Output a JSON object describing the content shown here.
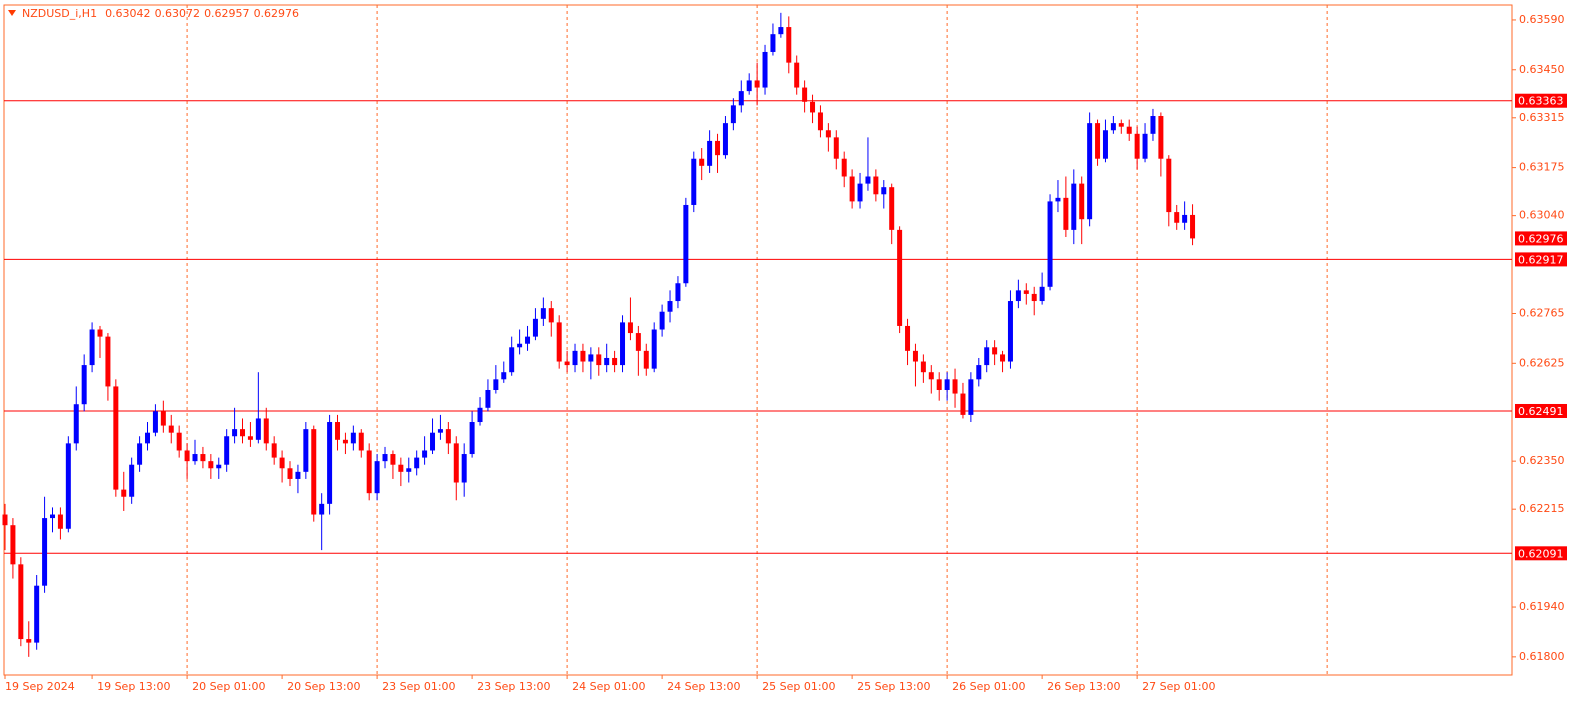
{
  "chart_data": {
    "type": "candlestick",
    "title": "NZDUSD_i,H1",
    "up_color": "#0000ff",
    "down_color": "#ff0000",
    "level_color": "#ff0000",
    "ylim": [
      0.61749,
      0.63632
    ],
    "yticks": [
      {
        "value": 0.6359,
        "label": "0.63590"
      },
      {
        "value": 0.6345,
        "label": "0.63450"
      },
      0.63315,
      0.63175,
      {
        "value": 0.6304,
        "label": "0.63040"
      },
      0.62765,
      0.62625,
      {
        "value": 0.6235,
        "label": "0.62350"
      },
      0.62215,
      {
        "value": 0.6194,
        "label": "0.61940"
      },
      {
        "value": 0.618,
        "label": "0.61800"
      }
    ],
    "xticks": [
      {
        "value": 0,
        "label": "19 Sep 2024"
      },
      {
        "value": 11,
        "label": "19 Sep 13:00"
      },
      {
        "value": 23,
        "label": "20 Sep 01:00"
      },
      {
        "value": 35,
        "label": "20 Sep 13:00"
      },
      {
        "value": 47,
        "label": "23 Sep 01:00"
      },
      {
        "value": 59,
        "label": "23 Sep 13:00"
      },
      {
        "value": 71,
        "label": "24 Sep 01:00"
      },
      {
        "value": 83,
        "label": "24 Sep 13:00"
      },
      {
        "value": 95,
        "label": "25 Sep 01:00"
      },
      {
        "value": 107,
        "label": "25 Sep 13:00"
      },
      {
        "value": 119,
        "label": "26 Sep 01:00"
      },
      {
        "value": 131,
        "label": "26 Sep 13:00"
      },
      {
        "value": 143,
        "label": "27 Sep 01:00"
      }
    ],
    "levels": [
      0.63363,
      0.62917,
      0.62491,
      0.62091
    ],
    "open": [
      0.622,
      0.6217,
      0.6206,
      0.6185,
      0.6184,
      0.62,
      0.6219,
      0.622,
      0.6216,
      0.624,
      0.6251,
      0.6262,
      0.6272,
      0.627,
      0.6256,
      0.6227,
      0.6225,
      0.6234,
      0.624,
      0.6243,
      0.6249,
      0.6245,
      0.6243,
      0.6238,
      0.6235,
      0.6237,
      0.6235,
      0.6233,
      0.6234,
      0.6242,
      0.6244,
      0.6242,
      0.6241,
      0.6247,
      0.624,
      0.6236,
      0.6233,
      0.623,
      0.6232,
      0.6244,
      0.622,
      0.6223,
      0.6246,
      0.6241,
      0.624,
      0.6243,
      0.6238,
      0.6226,
      0.6235,
      0.6237,
      0.6234,
      0.6232,
      0.6233,
      0.6236,
      0.6238,
      0.6243,
      0.6244,
      0.624,
      0.6229,
      0.6237,
      0.6246,
      0.625,
      0.6255,
      0.6258,
      0.626,
      0.6267,
      0.6268,
      0.627,
      0.6275,
      0.6278,
      0.6274,
      0.6263,
      0.6262,
      0.6266,
      0.6263,
      0.6265,
      0.6262,
      0.6264,
      0.6262,
      0.6274,
      0.6271,
      0.6266,
      0.6261,
      0.6272,
      0.6277,
      0.628,
      0.6285,
      0.6307,
      0.632,
      0.6318,
      0.6325,
      0.6321,
      0.633,
      0.6335,
      0.6339,
      0.6342,
      0.634,
      0.635,
      0.6355,
      0.6357,
      0.6347,
      0.634,
      0.6336,
      0.6333,
      0.6328,
      0.6326,
      0.632,
      0.6315,
      0.6308,
      0.6313,
      0.6315,
      0.631,
      0.6312,
      0.63,
      0.6273,
      0.6266,
      0.6263,
      0.626,
      0.6258,
      0.6255,
      0.6258,
      0.6254,
      0.6248,
      0.6258,
      0.6262,
      0.6267,
      0.6265,
      0.6263,
      0.628,
      0.6283,
      0.6282,
      0.628,
      0.6284,
      0.6308,
      0.6309,
      0.63,
      0.6313,
      0.6303,
      0.633,
      0.632,
      0.6328,
      0.633,
      0.6329,
      0.6327,
      0.632,
      0.6327,
      0.6332,
      0.632,
      0.6305,
      0.6302,
      0.63042
    ],
    "high": [
      0.6223,
      0.6219,
      0.6208,
      0.619,
      0.6203,
      0.6225,
      0.6222,
      0.6222,
      0.6242,
      0.6256,
      0.6265,
      0.6274,
      0.6273,
      0.6271,
      0.6258,
      0.6232,
      0.6236,
      0.6242,
      0.6246,
      0.6251,
      0.6252,
      0.6248,
      0.6245,
      0.624,
      0.6241,
      0.6239,
      0.6237,
      0.6236,
      0.6244,
      0.625,
      0.6247,
      0.6246,
      0.626,
      0.625,
      0.6242,
      0.6238,
      0.6235,
      0.6234,
      0.6246,
      0.6245,
      0.6226,
      0.6248,
      0.6248,
      0.6243,
      0.6245,
      0.6244,
      0.624,
      0.6237,
      0.6239,
      0.6238,
      0.6236,
      0.6236,
      0.6238,
      0.6242,
      0.6247,
      0.6248,
      0.6246,
      0.6242,
      0.624,
      0.6249,
      0.6253,
      0.6258,
      0.6262,
      0.6263,
      0.627,
      0.6272,
      0.6273,
      0.6278,
      0.6281,
      0.628,
      0.6276,
      0.6266,
      0.6268,
      0.6268,
      0.6267,
      0.6267,
      0.6268,
      0.6266,
      0.6276,
      0.6281,
      0.6273,
      0.6268,
      0.6274,
      0.6279,
      0.6283,
      0.6287,
      0.6309,
      0.6322,
      0.6323,
      0.6328,
      0.6327,
      0.6332,
      0.6337,
      0.6342,
      0.6344,
      0.6347,
      0.6352,
      0.6358,
      0.6361,
      0.636,
      0.6349,
      0.6342,
      0.6338,
      0.6335,
      0.633,
      0.6328,
      0.6322,
      0.6317,
      0.6316,
      0.6326,
      0.6317,
      0.6314,
      0.6313,
      0.6301,
      0.6275,
      0.6268,
      0.6265,
      0.6262,
      0.626,
      0.626,
      0.6261,
      0.6257,
      0.626,
      0.6264,
      0.6269,
      0.6269,
      0.6266,
      0.6283,
      0.6286,
      0.6285,
      0.6284,
      0.6288,
      0.631,
      0.6314,
      0.6315,
      0.6317,
      0.6315,
      0.6333,
      0.6331,
      0.6331,
      0.6332,
      0.6331,
      0.6331,
      0.6329,
      0.633,
      0.6334,
      0.6333,
      0.6321,
      0.6307,
      0.6308,
      0.63072
    ],
    "low": [
      0.621,
      0.6202,
      0.6183,
      0.618,
      0.6182,
      0.6198,
      0.6215,
      0.6213,
      0.6215,
      0.6238,
      0.6249,
      0.626,
      0.6264,
      0.6252,
      0.6225,
      0.6221,
      0.6223,
      0.6232,
      0.6238,
      0.6242,
      0.6243,
      0.624,
      0.6236,
      0.623,
      0.6234,
      0.6233,
      0.623,
      0.623,
      0.6232,
      0.624,
      0.624,
      0.6239,
      0.624,
      0.6238,
      0.6234,
      0.6229,
      0.6228,
      0.6226,
      0.623,
      0.6218,
      0.621,
      0.622,
      0.6238,
      0.6237,
      0.6238,
      0.6236,
      0.6224,
      0.6224,
      0.6233,
      0.623,
      0.6228,
      0.6229,
      0.6231,
      0.6234,
      0.6237,
      0.6241,
      0.6237,
      0.6224,
      0.6225,
      0.6236,
      0.6245,
      0.6249,
      0.6254,
      0.6257,
      0.6259,
      0.6265,
      0.6266,
      0.6269,
      0.6273,
      0.627,
      0.6261,
      0.626,
      0.626,
      0.626,
      0.6258,
      0.6259,
      0.626,
      0.626,
      0.626,
      0.6269,
      0.6259,
      0.6259,
      0.626,
      0.627,
      0.6274,
      0.6278,
      0.6284,
      0.6305,
      0.6314,
      0.6316,
      0.6316,
      0.632,
      0.6328,
      0.6333,
      0.6338,
      0.6335,
      0.6338,
      0.6349,
      0.6354,
      0.6344,
      0.6338,
      0.6333,
      0.633,
      0.6326,
      0.6322,
      0.6317,
      0.6312,
      0.6306,
      0.6306,
      0.6311,
      0.6308,
      0.6306,
      0.6296,
      0.6271,
      0.6262,
      0.6256,
      0.6257,
      0.6254,
      0.6252,
      0.6252,
      0.625,
      0.6247,
      0.6246,
      0.6256,
      0.626,
      0.6262,
      0.626,
      0.6261,
      0.6278,
      0.6279,
      0.6276,
      0.6279,
      0.6283,
      0.6305,
      0.6298,
      0.6296,
      0.6296,
      0.6301,
      0.6318,
      0.6319,
      0.6327,
      0.6327,
      0.6325,
      0.6317,
      0.6319,
      0.6325,
      0.6315,
      0.6301,
      0.63,
      0.63,
      0.62957
    ],
    "close": [
      0.6217,
      0.6206,
      0.6185,
      0.6184,
      0.62,
      0.6219,
      0.622,
      0.6216,
      0.624,
      0.6251,
      0.6262,
      0.6272,
      0.627,
      0.6256,
      0.6227,
      0.6225,
      0.6234,
      0.624,
      0.6243,
      0.6249,
      0.6245,
      0.6243,
      0.6238,
      0.6235,
      0.6237,
      0.6235,
      0.6233,
      0.6234,
      0.6242,
      0.6244,
      0.6242,
      0.6241,
      0.6247,
      0.624,
      0.6236,
      0.6233,
      0.623,
      0.6232,
      0.6244,
      0.622,
      0.6223,
      0.6246,
      0.6241,
      0.624,
      0.6243,
      0.6238,
      0.6226,
      0.6235,
      0.6237,
      0.6234,
      0.6232,
      0.6233,
      0.6236,
      0.6238,
      0.6243,
      0.6244,
      0.624,
      0.6229,
      0.6237,
      0.6246,
      0.625,
      0.6255,
      0.6258,
      0.626,
      0.6267,
      0.6268,
      0.627,
      0.6275,
      0.6278,
      0.6274,
      0.6263,
      0.6262,
      0.6266,
      0.6263,
      0.6265,
      0.6262,
      0.6264,
      0.6262,
      0.6274,
      0.6271,
      0.6266,
      0.6261,
      0.6272,
      0.6277,
      0.628,
      0.6285,
      0.6307,
      0.632,
      0.6318,
      0.6325,
      0.6321,
      0.633,
      0.6335,
      0.6339,
      0.6342,
      0.634,
      0.635,
      0.6355,
      0.6357,
      0.6347,
      0.634,
      0.6336,
      0.6333,
      0.6328,
      0.6326,
      0.632,
      0.6315,
      0.6308,
      0.6313,
      0.6315,
      0.631,
      0.6312,
      0.63,
      0.6273,
      0.6266,
      0.6263,
      0.626,
      0.6258,
      0.6255,
      0.6258,
      0.6254,
      0.6248,
      0.6258,
      0.6262,
      0.6267,
      0.6265,
      0.6263,
      0.628,
      0.6283,
      0.6282,
      0.628,
      0.6284,
      0.6308,
      0.6309,
      0.63,
      0.6313,
      0.6303,
      0.633,
      0.632,
      0.6328,
      0.633,
      0.6329,
      0.6327,
      0.632,
      0.6327,
      0.6332,
      0.632,
      0.6305,
      0.6302,
      0.63042,
      0.62976
    ]
  }
}
